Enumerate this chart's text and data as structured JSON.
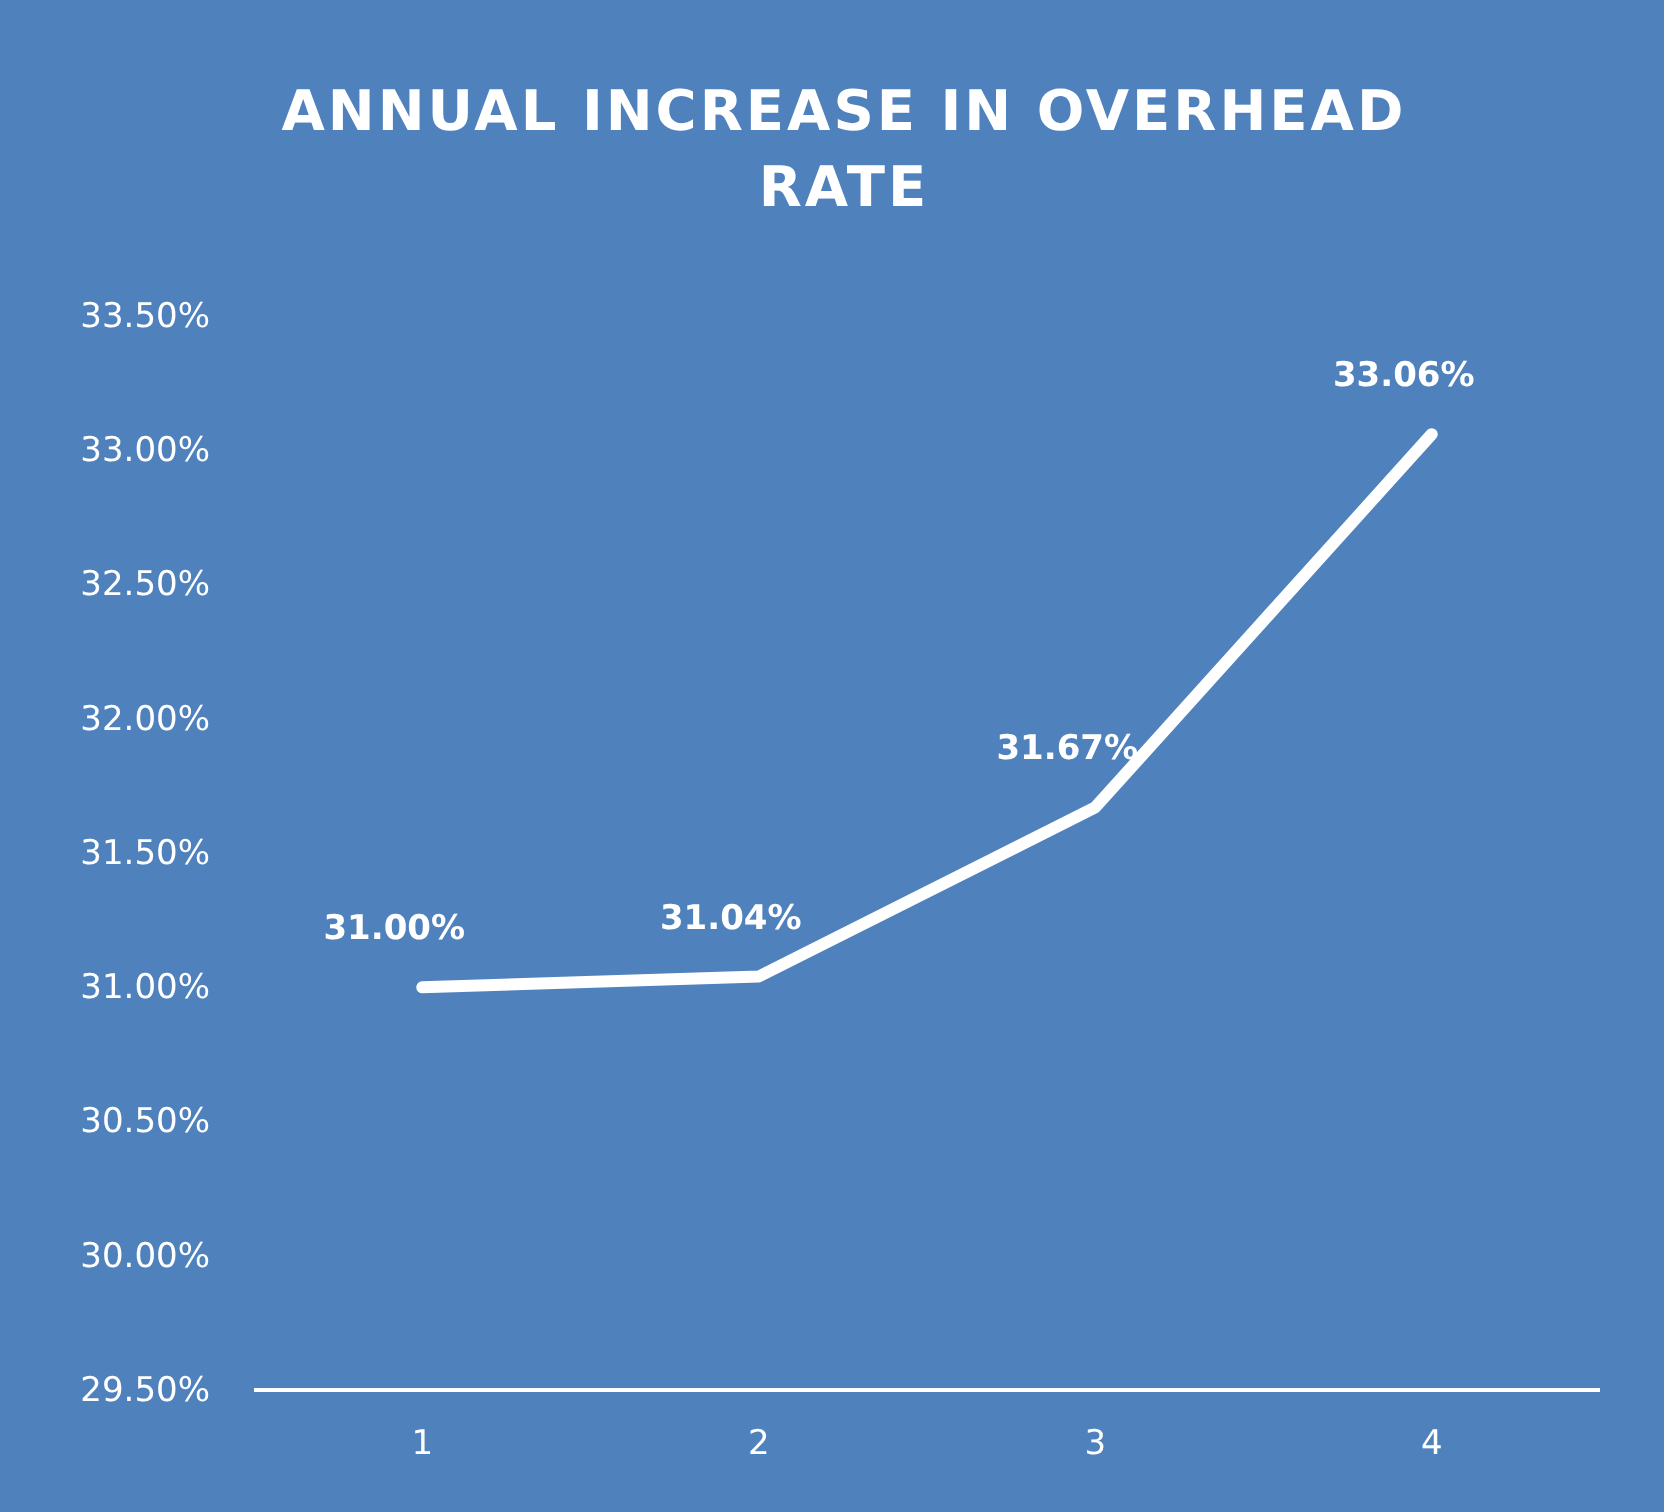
{
  "chart_data": {
    "type": "line",
    "title": "ANNUAL INCREASE IN OVERHEAD RATE",
    "categories": [
      "1",
      "2",
      "3",
      "4"
    ],
    "series": [
      {
        "color": "#ffffff",
        "values": [
          31.0,
          31.04,
          31.67,
          33.06
        ],
        "value_labels": [
          "31.00%",
          "31.04%",
          "31.67%",
          "33.06%"
        ]
      }
    ],
    "ylim": [
      29.5,
      33.5
    ],
    "yticks": [
      {
        "value": 29.5,
        "label": "29.50%"
      },
      {
        "value": 30,
        "label": "30.00%"
      },
      {
        "value": 30.5,
        "label": "30.50%"
      },
      {
        "value": 31,
        "label": "31.00%"
      },
      {
        "value": 31.5,
        "label": "31.50%"
      },
      {
        "value": 32,
        "label": "32.00%"
      },
      {
        "value": 32.5,
        "label": "32.50%"
      },
      {
        "value": 33,
        "label": "33.00%"
      },
      {
        "value": 33.5,
        "label": "33.50%"
      }
    ],
    "grid": false,
    "marker": "none",
    "line_style": "solid"
  }
}
